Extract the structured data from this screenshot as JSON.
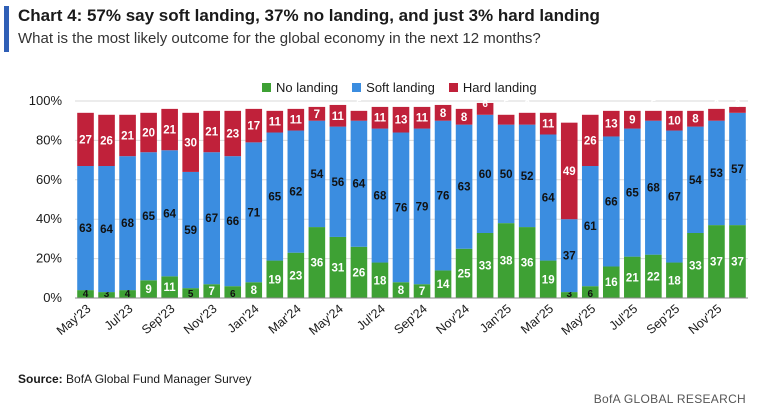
{
  "title": "Chart 4: 57% say soft landing, 37% no landing, and just 3% hard landing",
  "subtitle": "What is the most likely outcome for the global economy in the next 12 months?",
  "source_label": "Source:",
  "source_text": "BofA Global Fund Manager Survey",
  "brand": "BofA GLOBAL RESEARCH",
  "chart_data": {
    "type": "bar",
    "stacked": true,
    "ylim": [
      0,
      100
    ],
    "y_ticks": [
      "0%",
      "20%",
      "40%",
      "60%",
      "80%",
      "100%"
    ],
    "legend_position": "top",
    "x_tick_labels": [
      "May'23",
      "Jul'23",
      "Sep'23",
      "Nov'23",
      "Jan'24",
      "Mar'24",
      "May'24",
      "Jul'24",
      "Sep'24",
      "Nov'24",
      "Jan'25",
      "Mar'25",
      "May'25",
      "Jul'25",
      "Sep'25",
      "Nov'25"
    ],
    "series": [
      {
        "name": "No landing",
        "color": "#3ea134",
        "values": [
          4,
          3,
          4,
          9,
          11,
          5,
          7,
          6,
          8,
          19,
          23,
          36,
          31,
          26,
          18,
          8,
          7,
          14,
          25,
          33,
          38,
          36,
          19,
          3,
          6,
          16,
          21,
          22,
          18,
          33,
          37,
          37
        ]
      },
      {
        "name": "Soft landing",
        "color": "#3b8de0",
        "values": [
          63,
          64,
          68,
          65,
          64,
          59,
          67,
          66,
          71,
          65,
          62,
          54,
          56,
          64,
          68,
          76,
          79,
          76,
          63,
          60,
          50,
          52,
          64,
          37,
          61,
          66,
          65,
          68,
          67,
          54,
          53,
          57
        ]
      },
      {
        "name": "Hard landing",
        "color": "#c0213a",
        "values": [
          27,
          26,
          21,
          20,
          21,
          30,
          21,
          23,
          17,
          11,
          11,
          7,
          11,
          5,
          11,
          13,
          11,
          8,
          8,
          6,
          5,
          6,
          11,
          49,
          26,
          13,
          9,
          5,
          10,
          8,
          6,
          3
        ]
      }
    ]
  }
}
